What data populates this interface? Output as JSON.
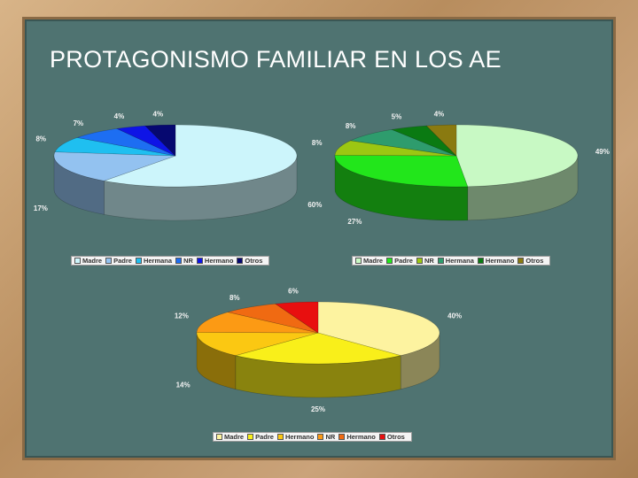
{
  "slide": {
    "title": "PROTAGONISMO FAMILIAR EN LOS AE"
  },
  "chart_data": [
    {
      "type": "pie",
      "labels": [
        "Madre",
        "Padre",
        "Hermana",
        "NR",
        "Hermano",
        "Otros"
      ],
      "values": [
        60,
        17,
        8,
        7,
        4,
        4
      ],
      "value_labels": [
        "60%",
        "17%",
        "8%",
        "7%",
        "4%",
        "4%"
      ],
      "colors": [
        "#ccf5fb",
        "#93c2f0",
        "#1fbff0",
        "#1d6ef2",
        "#0e14e6",
        "#060870"
      ],
      "legend_position": "bottom"
    },
    {
      "type": "pie",
      "labels": [
        "Madre",
        "Padre",
        "NR",
        "Hermana",
        "Hermano",
        "Otros"
      ],
      "values": [
        49,
        27,
        8,
        8,
        5,
        4
      ],
      "value_labels": [
        "49%",
        "27%",
        "8%",
        "8%",
        "5%",
        "4%"
      ],
      "colors": [
        "#c8f9c4",
        "#22e61b",
        "#9cc712",
        "#2e9c6d",
        "#0a7a12",
        "#8a7a10"
      ],
      "legend_position": "bottom"
    },
    {
      "type": "pie",
      "labels": [
        "Madre",
        "Padre",
        "Hermano",
        "NR",
        "Hermano",
        "Otros"
      ],
      "values": [
        40,
        25,
        14,
        12,
        8,
        6
      ],
      "value_labels": [
        "40%",
        "25%",
        "14%",
        "12%",
        "8%",
        "6%"
      ],
      "colors": [
        "#fdf3a0",
        "#f9ef1a",
        "#fbc812",
        "#fc9a14",
        "#f06a12",
        "#e80f0f"
      ],
      "legend_position": "bottom"
    }
  ]
}
